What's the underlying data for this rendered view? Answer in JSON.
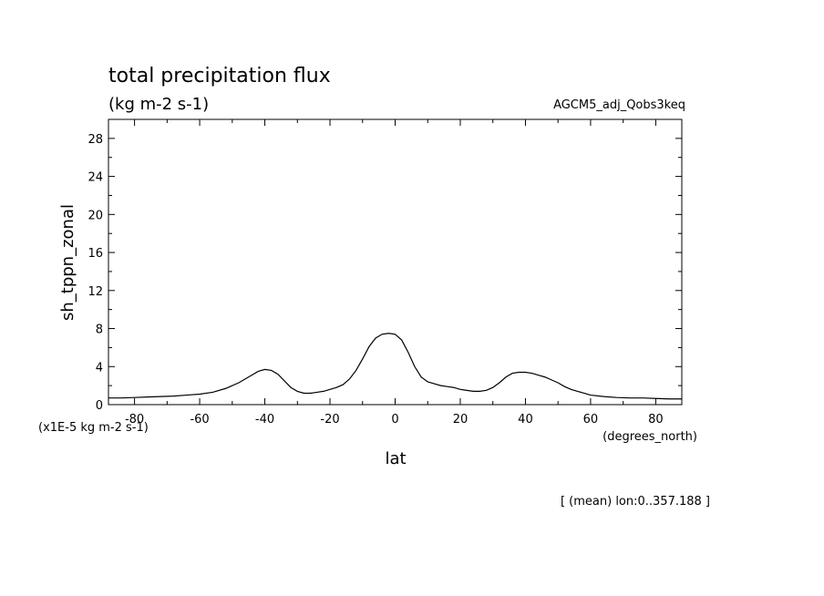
{
  "chart_data": {
    "type": "line",
    "title": "total precipitation flux",
    "units": "(kg m-2 s-1)",
    "experiment": "AGCM5_adj_Qobs3keq",
    "ylabel": "sh_tppn_zonal",
    "yscale_note": "(x1E-5 kg m-2 s-1)",
    "xlabel": "lat",
    "xunits": "(degrees_north)",
    "footnote": "[ (mean) lon:0..357.188 ]",
    "xlim": [
      -88,
      88
    ],
    "ylim": [
      0,
      30
    ],
    "xticks": [
      -80,
      -60,
      -40,
      -20,
      0,
      20,
      40,
      60,
      80
    ],
    "xtick_labels": [
      "-80",
      "-60",
      "-40",
      "-20",
      "0",
      "20",
      "40",
      "60",
      "80"
    ],
    "yticks": [
      0,
      4,
      8,
      12,
      16,
      20,
      24,
      28
    ],
    "ytick_labels": [
      "0",
      "4",
      "8",
      "12",
      "16",
      "20",
      "24",
      "28"
    ],
    "series": [
      {
        "x": [
          -88,
          -84,
          -80,
          -76,
          -72,
          -68,
          -64,
          -60,
          -56,
          -52,
          -48,
          -44,
          -42,
          -40,
          -38,
          -36,
          -34,
          -32,
          -30,
          -28,
          -26,
          -24,
          -22,
          -20,
          -18,
          -16,
          -14,
          -12,
          -10,
          -8,
          -6,
          -4,
          -2,
          0,
          2,
          4,
          6,
          8,
          10,
          12,
          14,
          16,
          18,
          20,
          22,
          24,
          26,
          28,
          30,
          32,
          34,
          36,
          38,
          40,
          42,
          44,
          46,
          48,
          50,
          52,
          54,
          56,
          60,
          64,
          68,
          72,
          76,
          80,
          84,
          88
        ],
        "y": [
          0.7,
          0.7,
          0.75,
          0.8,
          0.85,
          0.9,
          1.0,
          1.1,
          1.3,
          1.7,
          2.3,
          3.1,
          3.5,
          3.7,
          3.6,
          3.2,
          2.5,
          1.8,
          1.4,
          1.2,
          1.2,
          1.3,
          1.4,
          1.6,
          1.8,
          2.1,
          2.7,
          3.6,
          4.8,
          6.1,
          7.0,
          7.4,
          7.5,
          7.4,
          6.8,
          5.5,
          4.0,
          2.9,
          2.4,
          2.2,
          2.0,
          1.9,
          1.8,
          1.6,
          1.5,
          1.4,
          1.4,
          1.5,
          1.8,
          2.3,
          2.9,
          3.3,
          3.4,
          3.4,
          3.3,
          3.1,
          2.9,
          2.6,
          2.3,
          1.9,
          1.6,
          1.4,
          1.0,
          0.85,
          0.75,
          0.7,
          0.7,
          0.65,
          0.6,
          0.6
        ]
      }
    ]
  }
}
